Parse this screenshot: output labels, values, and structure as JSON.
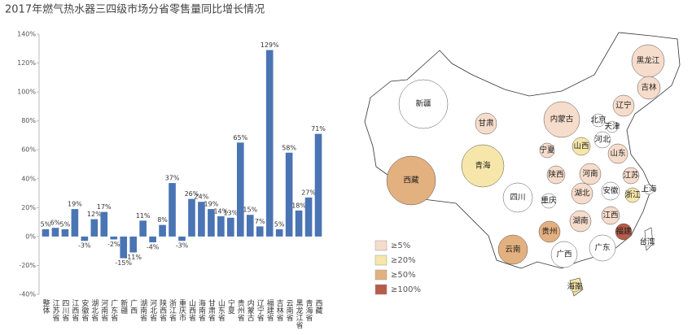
{
  "chart_data": [
    {
      "type": "bar",
      "title": "2017年燃气热水器三四级市场分省零售量同比增长情况",
      "categories": [
        "整体",
        "江苏省",
        "四川省",
        "江西省",
        "安徽省",
        "湖北省",
        "河南省",
        "广东省",
        "新疆",
        "广西",
        "湖南省",
        "河北省",
        "陕西省",
        "浙江省",
        "重庆市",
        "山西省",
        "海南省",
        "甘肃省",
        "山东省",
        "宁夏",
        "贵州省",
        "内蒙古",
        "辽宁省",
        "福建省",
        "吉林省",
        "云南省",
        "黑龙江省",
        "青海省",
        "西藏"
      ],
      "values": [
        5,
        6,
        5,
        19,
        -3,
        12,
        17,
        -2,
        -15,
        -11,
        11,
        -4,
        8,
        37,
        -3,
        26,
        24,
        19,
        14,
        13,
        65,
        15,
        7,
        129,
        5,
        58,
        18,
        27,
        71
      ],
      "value_labels": [
        "5%",
        "6%",
        "5%",
        "19%",
        "-3%",
        "12%",
        "17%",
        "-2%",
        "-15%",
        "-11%",
        "11%",
        "-4%",
        "8%",
        "37%",
        "-3%",
        "26%",
        "24%",
        "19%",
        "14%",
        "13%",
        "65%",
        "15%",
        "7%",
        "129%",
        "5%",
        "58%",
        "18%",
        "27%",
        "71%"
      ],
      "color": "#4a74b4",
      "ylim": [
        -40,
        140
      ],
      "yticks": [
        {
          "value": -40,
          "label": "-40%"
        },
        {
          "value": -20,
          "label": "-20%"
        },
        {
          "value": 0,
          "label": "0%"
        },
        {
          "value": 20,
          "label": "20%"
        },
        {
          "value": 40,
          "label": "40%"
        },
        {
          "value": 60,
          "label": "60%"
        },
        {
          "value": 80,
          "label": "80%"
        },
        {
          "value": 100,
          "label": "100%"
        },
        {
          "value": 120,
          "label": "120%"
        },
        {
          "value": 140,
          "label": "140%"
        }
      ]
    },
    {
      "type": "map",
      "legend": [
        {
          "label": "≥5%",
          "color": "#f6dccb"
        },
        {
          "label": "≥20%",
          "color": "#f6e6a9"
        },
        {
          "label": "≥50%",
          "color": "#e3b07f"
        },
        {
          "label": "≥100%",
          "color": "#b65c48"
        }
      ],
      "provinces": [
        {
          "name": "新疆",
          "color": "#ffffff"
        },
        {
          "name": "西藏",
          "color": "#e3b07f"
        },
        {
          "name": "青海",
          "color": "#f6e6a9"
        },
        {
          "name": "甘肃",
          "color": "#f6dccb"
        },
        {
          "name": "内蒙古",
          "color": "#f6dccb"
        },
        {
          "name": "黑龙江",
          "color": "#f6dccb"
        },
        {
          "name": "吉林",
          "color": "#f6dccb"
        },
        {
          "name": "辽宁",
          "color": "#f6dccb"
        },
        {
          "name": "北京",
          "color": "#ffffff"
        },
        {
          "name": "天津",
          "color": "#ffffff"
        },
        {
          "name": "河北",
          "color": "#ffffff"
        },
        {
          "name": "山西",
          "color": "#f6e6a9"
        },
        {
          "name": "山东",
          "color": "#f6dccb"
        },
        {
          "name": "宁夏",
          "color": "#f6dccb"
        },
        {
          "name": "陕西",
          "color": "#f6dccb"
        },
        {
          "name": "河南",
          "color": "#f6dccb"
        },
        {
          "name": "江苏",
          "color": "#f6dccb"
        },
        {
          "name": "安徽",
          "color": "#ffffff"
        },
        {
          "name": "湖北",
          "color": "#f6dccb"
        },
        {
          "name": "重庆",
          "color": "#ffffff"
        },
        {
          "name": "四川",
          "color": "#ffffff"
        },
        {
          "name": "上海",
          "color": "#ffffff"
        },
        {
          "name": "浙江",
          "color": "#f6e6a9"
        },
        {
          "name": "湖南",
          "color": "#f6dccb"
        },
        {
          "name": "江西",
          "color": "#f6dccb"
        },
        {
          "name": "福建",
          "color": "#b65c48"
        },
        {
          "name": "贵州",
          "color": "#e3b07f"
        },
        {
          "name": "云南",
          "color": "#e3b07f"
        },
        {
          "name": "广西",
          "color": "#ffffff"
        },
        {
          "name": "广东",
          "color": "#ffffff"
        },
        {
          "name": "海南",
          "color": "#f6e6a9"
        },
        {
          "name": "台湾",
          "color": "#ffffff"
        }
      ]
    }
  ]
}
